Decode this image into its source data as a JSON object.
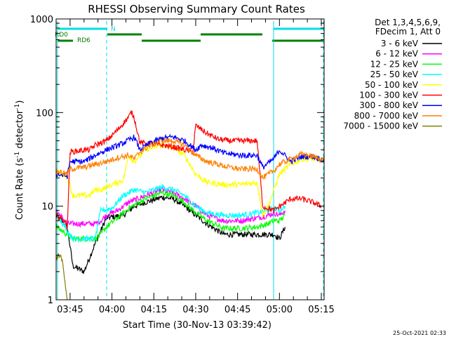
{
  "chart_data": {
    "type": "line",
    "title": "RHESSI Observing Summary Count Rates",
    "xlabel": "Start Time (30-Nov-13 03:39:42)",
    "ylabel_main": "Count Rate (s",
    "ylabel_sup1": "-1",
    "ylabel_mid": " detector",
    "ylabel_sup2": "-1",
    "ylabel_end": ")",
    "y_scale": "log",
    "ylim": [
      1,
      1000
    ],
    "xlim": [
      0,
      96
    ],
    "x_ticks": [
      {
        "t": 5,
        "label": "03:45"
      },
      {
        "t": 20,
        "label": "04:00"
      },
      {
        "t": 35,
        "label": "04:15"
      },
      {
        "t": 50,
        "label": "04:30"
      },
      {
        "t": 65,
        "label": "04:45"
      },
      {
        "t": 80,
        "label": "05:00"
      },
      {
        "t": 95,
        "label": "05:15"
      }
    ],
    "y_ticks": [
      {
        "v": 1,
        "label": "1"
      },
      {
        "v": 10,
        "label": "10"
      },
      {
        "v": 100,
        "label": "100"
      },
      {
        "v": 1000,
        "label": "1000"
      }
    ],
    "legend_header": [
      "Det 1,3,4,5,6,9,",
      "FDecim 1, Att 0"
    ],
    "series": [
      {
        "name": "3 - 6 keV",
        "color": "#000000",
        "points": [
          [
            0,
            8
          ],
          [
            4,
            6
          ],
          [
            6,
            2.3
          ],
          [
            10,
            2
          ],
          [
            14,
            4
          ],
          [
            18,
            7.5
          ],
          [
            24,
            8
          ],
          [
            28,
            10
          ],
          [
            32,
            11
          ],
          [
            38,
            12.5
          ],
          [
            42,
            12
          ],
          [
            46,
            10
          ],
          [
            50,
            8
          ],
          [
            54,
            6.5
          ],
          [
            60,
            5
          ],
          [
            66,
            5
          ],
          [
            72,
            5
          ],
          [
            76,
            5
          ],
          [
            78,
            5
          ],
          [
            80,
            4.5
          ],
          [
            82,
            6
          ]
        ]
      },
      {
        "name": "6 - 12 keV",
        "color": "#ff00ff",
        "points": [
          [
            0,
            9
          ],
          [
            4,
            6.5
          ],
          [
            6,
            6.5
          ],
          [
            14,
            6.5
          ],
          [
            16,
            7
          ],
          [
            18,
            8
          ],
          [
            22,
            9
          ],
          [
            26,
            11
          ],
          [
            32,
            13
          ],
          [
            38,
            15
          ],
          [
            42,
            14
          ],
          [
            46,
            12
          ],
          [
            50,
            10
          ],
          [
            54,
            8
          ],
          [
            60,
            7
          ],
          [
            66,
            7
          ],
          [
            72,
            7.5
          ],
          [
            76,
            8
          ],
          [
            78,
            8.5
          ],
          [
            80,
            8
          ],
          [
            82,
            9
          ]
        ]
      },
      {
        "name": "12 - 25 keV",
        "color": "#00ff00",
        "points": [
          [
            0,
            6
          ],
          [
            4,
            5
          ],
          [
            6,
            4.5
          ],
          [
            14,
            4.5
          ],
          [
            16,
            5
          ],
          [
            18,
            6
          ],
          [
            22,
            7.5
          ],
          [
            26,
            9.5
          ],
          [
            32,
            12
          ],
          [
            38,
            14
          ],
          [
            42,
            13
          ],
          [
            46,
            11
          ],
          [
            50,
            8.5
          ],
          [
            54,
            7
          ],
          [
            60,
            5.8
          ],
          [
            66,
            5.8
          ],
          [
            72,
            6
          ],
          [
            76,
            6.5
          ],
          [
            78,
            7
          ],
          [
            80,
            7
          ],
          [
            82,
            8
          ]
        ]
      },
      {
        "name": "25 - 50 keV",
        "color": "#00ffff",
        "points": [
          [
            0,
            8.5
          ],
          [
            4,
            5.5
          ],
          [
            6,
            4.5
          ],
          [
            14,
            4.5
          ],
          [
            16,
            9
          ],
          [
            20,
            9.5
          ],
          [
            24,
            13
          ],
          [
            28,
            15
          ],
          [
            32,
            14
          ],
          [
            38,
            16
          ],
          [
            42,
            15
          ],
          [
            46,
            13
          ],
          [
            50,
            10
          ],
          [
            54,
            8.5
          ],
          [
            60,
            8
          ],
          [
            66,
            8
          ],
          [
            72,
            8.5
          ],
          [
            76,
            9
          ],
          [
            78,
            9.5
          ],
          [
            80,
            9
          ],
          [
            82,
            10
          ]
        ]
      },
      {
        "name": "50 - 100 keV",
        "color": "#ffff00",
        "points": [
          [
            0,
            23
          ],
          [
            4,
            21
          ],
          [
            6,
            13
          ],
          [
            12,
            13
          ],
          [
            14,
            15
          ],
          [
            16,
            15
          ],
          [
            20,
            17
          ],
          [
            24,
            19
          ],
          [
            26,
            35
          ],
          [
            28,
            30
          ],
          [
            32,
            40
          ],
          [
            38,
            45
          ],
          [
            42,
            42
          ],
          [
            46,
            35
          ],
          [
            50,
            22
          ],
          [
            54,
            18
          ],
          [
            60,
            17
          ],
          [
            66,
            17
          ],
          [
            72,
            18
          ],
          [
            74,
            8
          ],
          [
            76,
            10
          ],
          [
            80,
            22
          ],
          [
            84,
            28
          ],
          [
            88,
            32
          ],
          [
            92,
            32
          ],
          [
            96,
            30
          ]
        ]
      },
      {
        "name": "100 - 300 keV",
        "color": "#ff0000",
        "points": [
          [
            0,
            8
          ],
          [
            3,
            7
          ],
          [
            4,
            6
          ],
          [
            5,
            38
          ],
          [
            8,
            39
          ],
          [
            10,
            40
          ],
          [
            12,
            40
          ],
          [
            14,
            45
          ],
          [
            18,
            50
          ],
          [
            22,
            65
          ],
          [
            26,
            90
          ],
          [
            27,
            101
          ],
          [
            28,
            88
          ],
          [
            30,
            48
          ],
          [
            34,
            46
          ],
          [
            38,
            45
          ],
          [
            42,
            43
          ],
          [
            46,
            40
          ],
          [
            49,
            38
          ],
          [
            50,
            73
          ],
          [
            54,
            60
          ],
          [
            58,
            52
          ],
          [
            62,
            50
          ],
          [
            66,
            50
          ],
          [
            72,
            50
          ],
          [
            74,
            10
          ],
          [
            78,
            9
          ],
          [
            84,
            12
          ],
          [
            88,
            12
          ],
          [
            92,
            11
          ],
          [
            95,
            10
          ]
        ]
      },
      {
        "name": "300 - 800 keV",
        "color": "#0000ff",
        "points": [
          [
            0,
            22
          ],
          [
            4,
            21
          ],
          [
            5,
            30
          ],
          [
            10,
            30
          ],
          [
            14,
            35
          ],
          [
            18,
            40
          ],
          [
            24,
            47
          ],
          [
            28,
            55
          ],
          [
            30,
            40
          ],
          [
            34,
            48
          ],
          [
            38,
            53
          ],
          [
            42,
            55
          ],
          [
            46,
            50
          ],
          [
            50,
            40
          ],
          [
            52,
            45
          ],
          [
            56,
            42
          ],
          [
            60,
            37
          ],
          [
            66,
            35
          ],
          [
            72,
            35
          ],
          [
            74,
            26
          ],
          [
            78,
            32
          ],
          [
            80,
            40
          ],
          [
            84,
            30
          ],
          [
            88,
            34
          ],
          [
            92,
            34
          ],
          [
            96,
            31
          ]
        ]
      },
      {
        "name": "800 - 7000 keV",
        "color": "#ff8000",
        "points": [
          [
            0,
            24
          ],
          [
            4,
            22
          ],
          [
            5,
            25
          ],
          [
            10,
            26
          ],
          [
            14,
            28
          ],
          [
            18,
            30
          ],
          [
            22,
            33
          ],
          [
            26,
            35
          ],
          [
            28,
            32
          ],
          [
            30,
            38
          ],
          [
            34,
            45
          ],
          [
            38,
            50
          ],
          [
            42,
            50
          ],
          [
            46,
            45
          ],
          [
            50,
            35
          ],
          [
            54,
            30
          ],
          [
            58,
            28
          ],
          [
            62,
            26
          ],
          [
            66,
            25
          ],
          [
            72,
            25
          ],
          [
            74,
            20
          ],
          [
            78,
            24
          ],
          [
            80,
            28
          ],
          [
            84,
            32
          ],
          [
            88,
            36
          ],
          [
            92,
            34
          ],
          [
            96,
            31
          ]
        ]
      },
      {
        "name": "7000 - 15000 keV",
        "color": "#808000",
        "points": [
          [
            0,
            2.8
          ],
          [
            1,
            3
          ],
          [
            2,
            2.8
          ],
          [
            4,
            1
          ]
        ]
      }
    ],
    "coverage_bars": {
      "cyan_label": "N",
      "green_label_1": "RD0",
      "green_label_2": "RD6"
    }
  },
  "footer": {
    "timestamp": "25-Oct-2021 02:33"
  }
}
